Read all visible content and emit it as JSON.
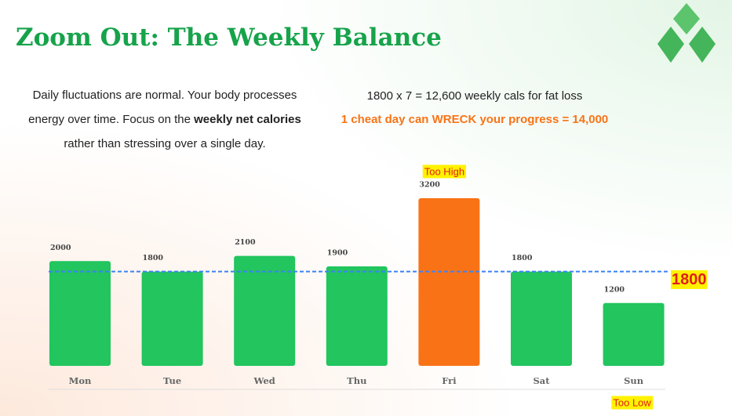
{
  "header": {
    "title": "Zoom Out: The Weekly Balance"
  },
  "intro": [
    "Daily fluctuations are normal. Your body processes energy over time. Focus on the ",
    "weekly net calories",
    " rather than stressing over a single day."
  ],
  "formula": "1800 x 7 = 12,600 weekly cals for fat loss",
  "warning": "1 cheat day can WRECK your progress = 14,000",
  "chart_data": {
    "type": "bar",
    "categories": [
      "Mon",
      "Tue",
      "Wed",
      "Thu",
      "Fri",
      "Sat",
      "Sun"
    ],
    "values": [
      2000,
      1800,
      2100,
      1900,
      3200,
      1800,
      1200
    ],
    "colors": [
      "#22c55e",
      "#22c55e",
      "#22c55e",
      "#22c55e",
      "#f97316",
      "#22c55e",
      "#22c55e"
    ],
    "reference_line": 1800,
    "high_label": "Too High",
    "low_label": "Too Low"
  }
}
